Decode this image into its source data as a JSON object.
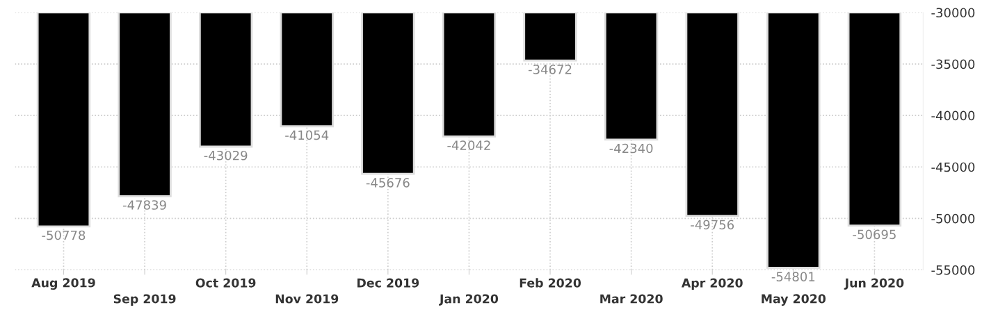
{
  "chart_data": {
    "type": "bar",
    "categories": [
      "Aug 2019",
      "Sep 2019",
      "Oct 2019",
      "Nov 2019",
      "Dec 2019",
      "Jan 2020",
      "Feb 2020",
      "Mar 2020",
      "Apr 2020",
      "May 2020",
      "Jun 2020"
    ],
    "values": [
      -50778,
      -47839,
      -43029,
      -41054,
      -45676,
      -42042,
      -34672,
      -42340,
      -49756,
      -54801,
      -50695
    ],
    "color": "#000000",
    "ylim": [
      -55000,
      -30000
    ],
    "yticks": [
      -55000,
      -50000,
      -45000,
      -40000,
      -35000,
      -30000
    ],
    "grid": true,
    "data_labels": true,
    "legend": false
  }
}
